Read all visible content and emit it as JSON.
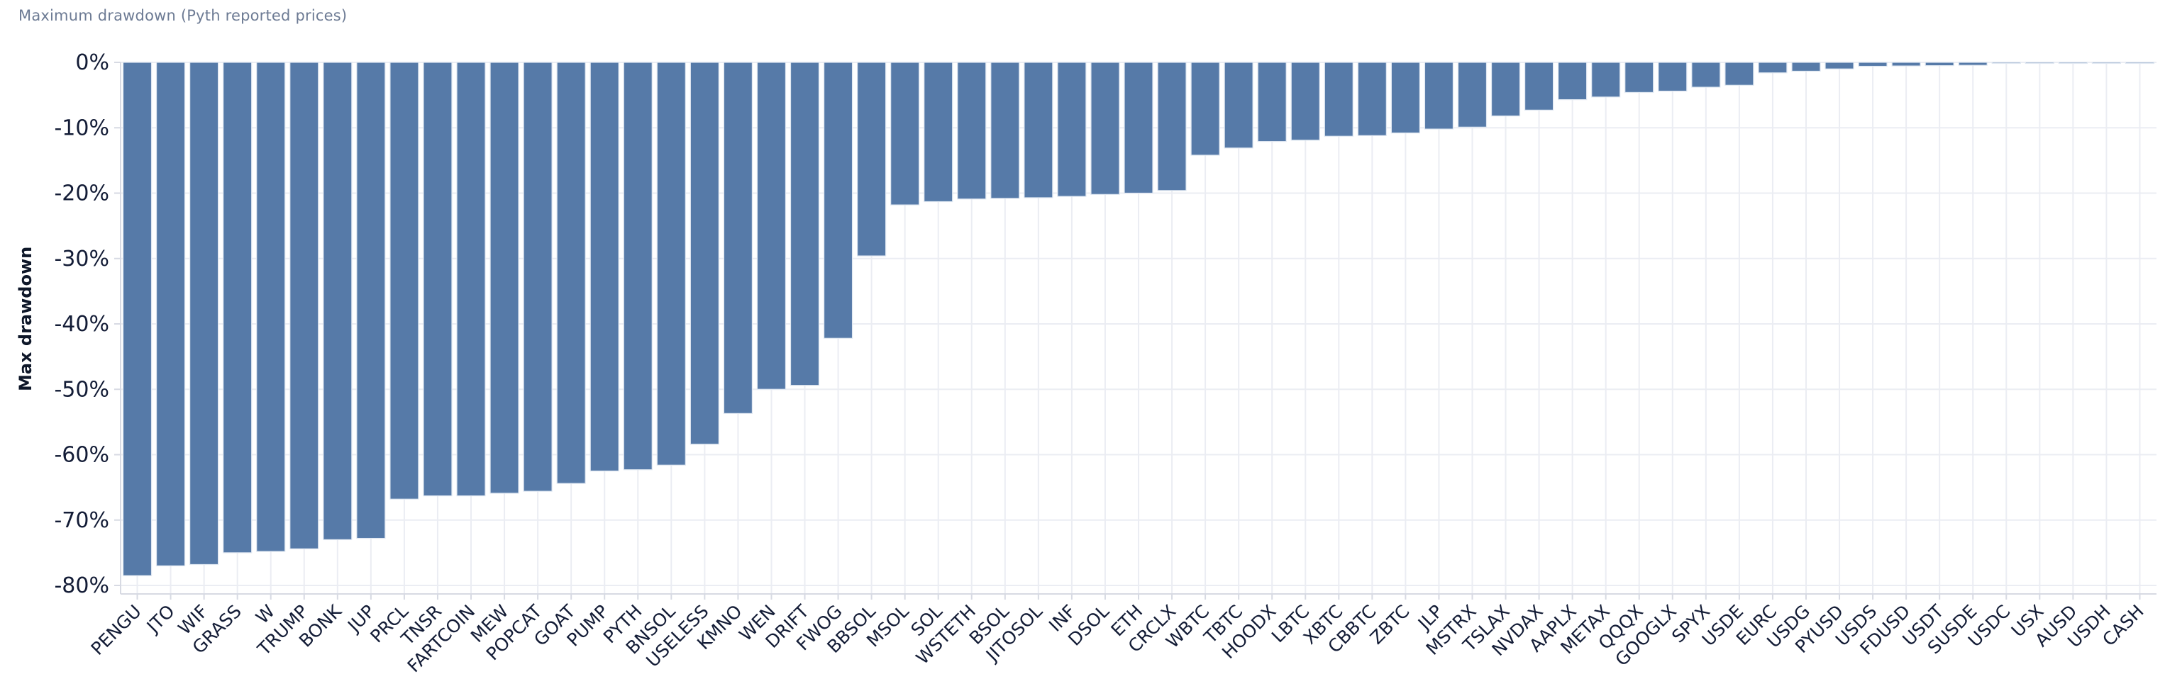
{
  "chart_data": {
    "type": "bar",
    "title": "Maximum drawdown (Pyth reported prices)",
    "ylabel": "Max drawdown",
    "xlabel": "",
    "ylim": [
      -81.5,
      0
    ],
    "grid": true,
    "legend_position": "none",
    "bar_color": "#567aa8",
    "bar_edge_color": "#dfe7f1",
    "grid_color": "#ebedf3",
    "axis_line_color": "#d7dae3",
    "tick_label_color": "#131c36",
    "title_color": "#6d7b94",
    "y_ticks": {
      "values": [
        0,
        -10,
        -20,
        -30,
        -40,
        -50,
        -60,
        -70,
        -80
      ],
      "labels": [
        "0%",
        "-10%",
        "-20%",
        "-30%",
        "-40%",
        "-50%",
        "-60%",
        "-70%",
        "-80%"
      ]
    },
    "categories": [
      "PENGU",
      "JTO",
      "WIF",
      "GRASS",
      "W",
      "TRUMP",
      "BONK",
      "JUP",
      "PRCL",
      "TNSR",
      "FARTCOIN",
      "MEW",
      "POPCAT",
      "GOAT",
      "PUMP",
      "PYTH",
      "BNSOL",
      "USELESS",
      "KMNO",
      "WEN",
      "DRIFT",
      "FWOG",
      "BBSOL",
      "MSOL",
      "SOL",
      "WSTETH",
      "BSOL",
      "JITOSOL",
      "INF",
      "DSOL",
      "ETH",
      "CRCLX",
      "WBTC",
      "TBTC",
      "HOODX",
      "LBTC",
      "XBTC",
      "CBBTC",
      "ZBTC",
      "JLP",
      "MSTRX",
      "TSLAX",
      "NVDAX",
      "AAPLX",
      "METAX",
      "QQQX",
      "GOOGLX",
      "SPYX",
      "USDE",
      "EURC",
      "USDG",
      "PYUSD",
      "USDS",
      "FDUSD",
      "USDT",
      "SUSDE",
      "USDC",
      "USX",
      "AUSD",
      "USDH",
      "CASH"
    ],
    "values": [
      -78.5,
      -77,
      -76.8,
      -75,
      -74.8,
      -74.4,
      -73,
      -72.8,
      -66.8,
      -66.3,
      -66.3,
      -65.9,
      -65.6,
      -64.4,
      -62.5,
      -62.3,
      -61.6,
      -58.4,
      -53.7,
      -50,
      -49.4,
      -42.2,
      -29.6,
      -21.8,
      -21.3,
      -20.9,
      -20.8,
      -20.7,
      -20.5,
      -20.2,
      -20,
      -19.6,
      -14.2,
      -13.1,
      -12.1,
      -11.9,
      -11.3,
      -11.2,
      -10.8,
      -10.2,
      -9.9,
      -8.2,
      -7.3,
      -5.7,
      -5.3,
      -4.6,
      -4.4,
      -3.8,
      -3.5,
      -1.6,
      -1.35,
      -1.0,
      -0.6,
      -0.55,
      -0.5,
      -0.45,
      -0.15,
      -0.12,
      -0.1,
      -0.08,
      -0.05
    ]
  }
}
